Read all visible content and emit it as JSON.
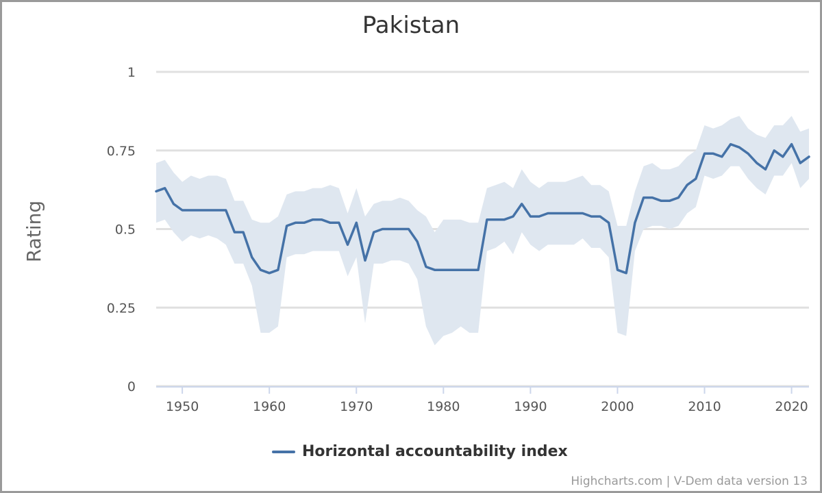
{
  "credits": "Highcharts.com | V-Dem data version 13",
  "colors": {
    "line": "#4572a7",
    "band": "#dfe7f0",
    "grid": "#e0e0e0"
  },
  "chart_data": {
    "type": "line",
    "title": "Pakistan",
    "ylabel": "Rating",
    "xlabel": "",
    "xlim": [
      1947,
      2022
    ],
    "ylim": [
      0,
      1
    ],
    "x_ticks": [
      "1950",
      "1960",
      "1970",
      "1980",
      "1990",
      "2000",
      "2010",
      "2020"
    ],
    "y_ticks": [
      "0",
      "0.25",
      "0.5",
      "0.75",
      "1"
    ],
    "grid": true,
    "legend_position": "bottom-center",
    "x": [
      1947,
      1948,
      1949,
      1950,
      1951,
      1952,
      1953,
      1954,
      1955,
      1956,
      1957,
      1958,
      1959,
      1960,
      1961,
      1962,
      1963,
      1964,
      1965,
      1966,
      1967,
      1968,
      1969,
      1970,
      1971,
      1972,
      1973,
      1974,
      1975,
      1976,
      1977,
      1978,
      1979,
      1980,
      1981,
      1982,
      1983,
      1984,
      1985,
      1986,
      1987,
      1988,
      1989,
      1990,
      1991,
      1992,
      1993,
      1994,
      1995,
      1996,
      1997,
      1998,
      1999,
      2000,
      2001,
      2002,
      2003,
      2004,
      2005,
      2006,
      2007,
      2008,
      2009,
      2010,
      2011,
      2012,
      2013,
      2014,
      2015,
      2016,
      2017,
      2018,
      2019,
      2020,
      2021,
      2022
    ],
    "series": [
      {
        "name": "Horizontal accountability index",
        "values": [
          0.62,
          0.63,
          0.58,
          0.56,
          0.56,
          0.56,
          0.56,
          0.56,
          0.56,
          0.49,
          0.49,
          0.41,
          0.37,
          0.36,
          0.37,
          0.51,
          0.52,
          0.52,
          0.53,
          0.53,
          0.52,
          0.52,
          0.45,
          0.52,
          0.4,
          0.49,
          0.5,
          0.5,
          0.5,
          0.5,
          0.46,
          0.38,
          0.37,
          0.37,
          0.37,
          0.37,
          0.37,
          0.37,
          0.53,
          0.53,
          0.53,
          0.54,
          0.58,
          0.54,
          0.54,
          0.55,
          0.55,
          0.55,
          0.55,
          0.55,
          0.54,
          0.54,
          0.52,
          0.37,
          0.36,
          0.52,
          0.6,
          0.6,
          0.59,
          0.59,
          0.6,
          0.64,
          0.66,
          0.74,
          0.74,
          0.73,
          0.77,
          0.76,
          0.74,
          0.71,
          0.69,
          0.75,
          0.73,
          0.77,
          0.71,
          0.73
        ],
        "lower": [
          0.52,
          0.53,
          0.49,
          0.46,
          0.48,
          0.47,
          0.48,
          0.47,
          0.45,
          0.39,
          0.39,
          0.32,
          0.17,
          0.17,
          0.19,
          0.41,
          0.42,
          0.42,
          0.43,
          0.43,
          0.43,
          0.43,
          0.35,
          0.41,
          0.2,
          0.39,
          0.39,
          0.4,
          0.4,
          0.39,
          0.34,
          0.19,
          0.13,
          0.16,
          0.17,
          0.19,
          0.17,
          0.17,
          0.43,
          0.44,
          0.46,
          0.42,
          0.49,
          0.45,
          0.43,
          0.45,
          0.45,
          0.45,
          0.45,
          0.47,
          0.44,
          0.44,
          0.41,
          0.17,
          0.16,
          0.43,
          0.5,
          0.51,
          0.51,
          0.5,
          0.51,
          0.55,
          0.57,
          0.67,
          0.66,
          0.67,
          0.7,
          0.7,
          0.66,
          0.63,
          0.61,
          0.67,
          0.67,
          0.71,
          0.63,
          0.66
        ],
        "upper": [
          0.71,
          0.72,
          0.68,
          0.65,
          0.67,
          0.66,
          0.67,
          0.67,
          0.66,
          0.59,
          0.59,
          0.53,
          0.52,
          0.52,
          0.54,
          0.61,
          0.62,
          0.62,
          0.63,
          0.63,
          0.64,
          0.63,
          0.55,
          0.63,
          0.54,
          0.58,
          0.59,
          0.59,
          0.6,
          0.59,
          0.56,
          0.54,
          0.49,
          0.53,
          0.53,
          0.53,
          0.52,
          0.52,
          0.63,
          0.64,
          0.65,
          0.63,
          0.69,
          0.65,
          0.63,
          0.65,
          0.65,
          0.65,
          0.66,
          0.67,
          0.64,
          0.64,
          0.62,
          0.51,
          0.51,
          0.62,
          0.7,
          0.71,
          0.69,
          0.69,
          0.7,
          0.73,
          0.75,
          0.83,
          0.82,
          0.83,
          0.85,
          0.86,
          0.82,
          0.8,
          0.79,
          0.83,
          0.83,
          0.86,
          0.81,
          0.82
        ]
      }
    ]
  }
}
